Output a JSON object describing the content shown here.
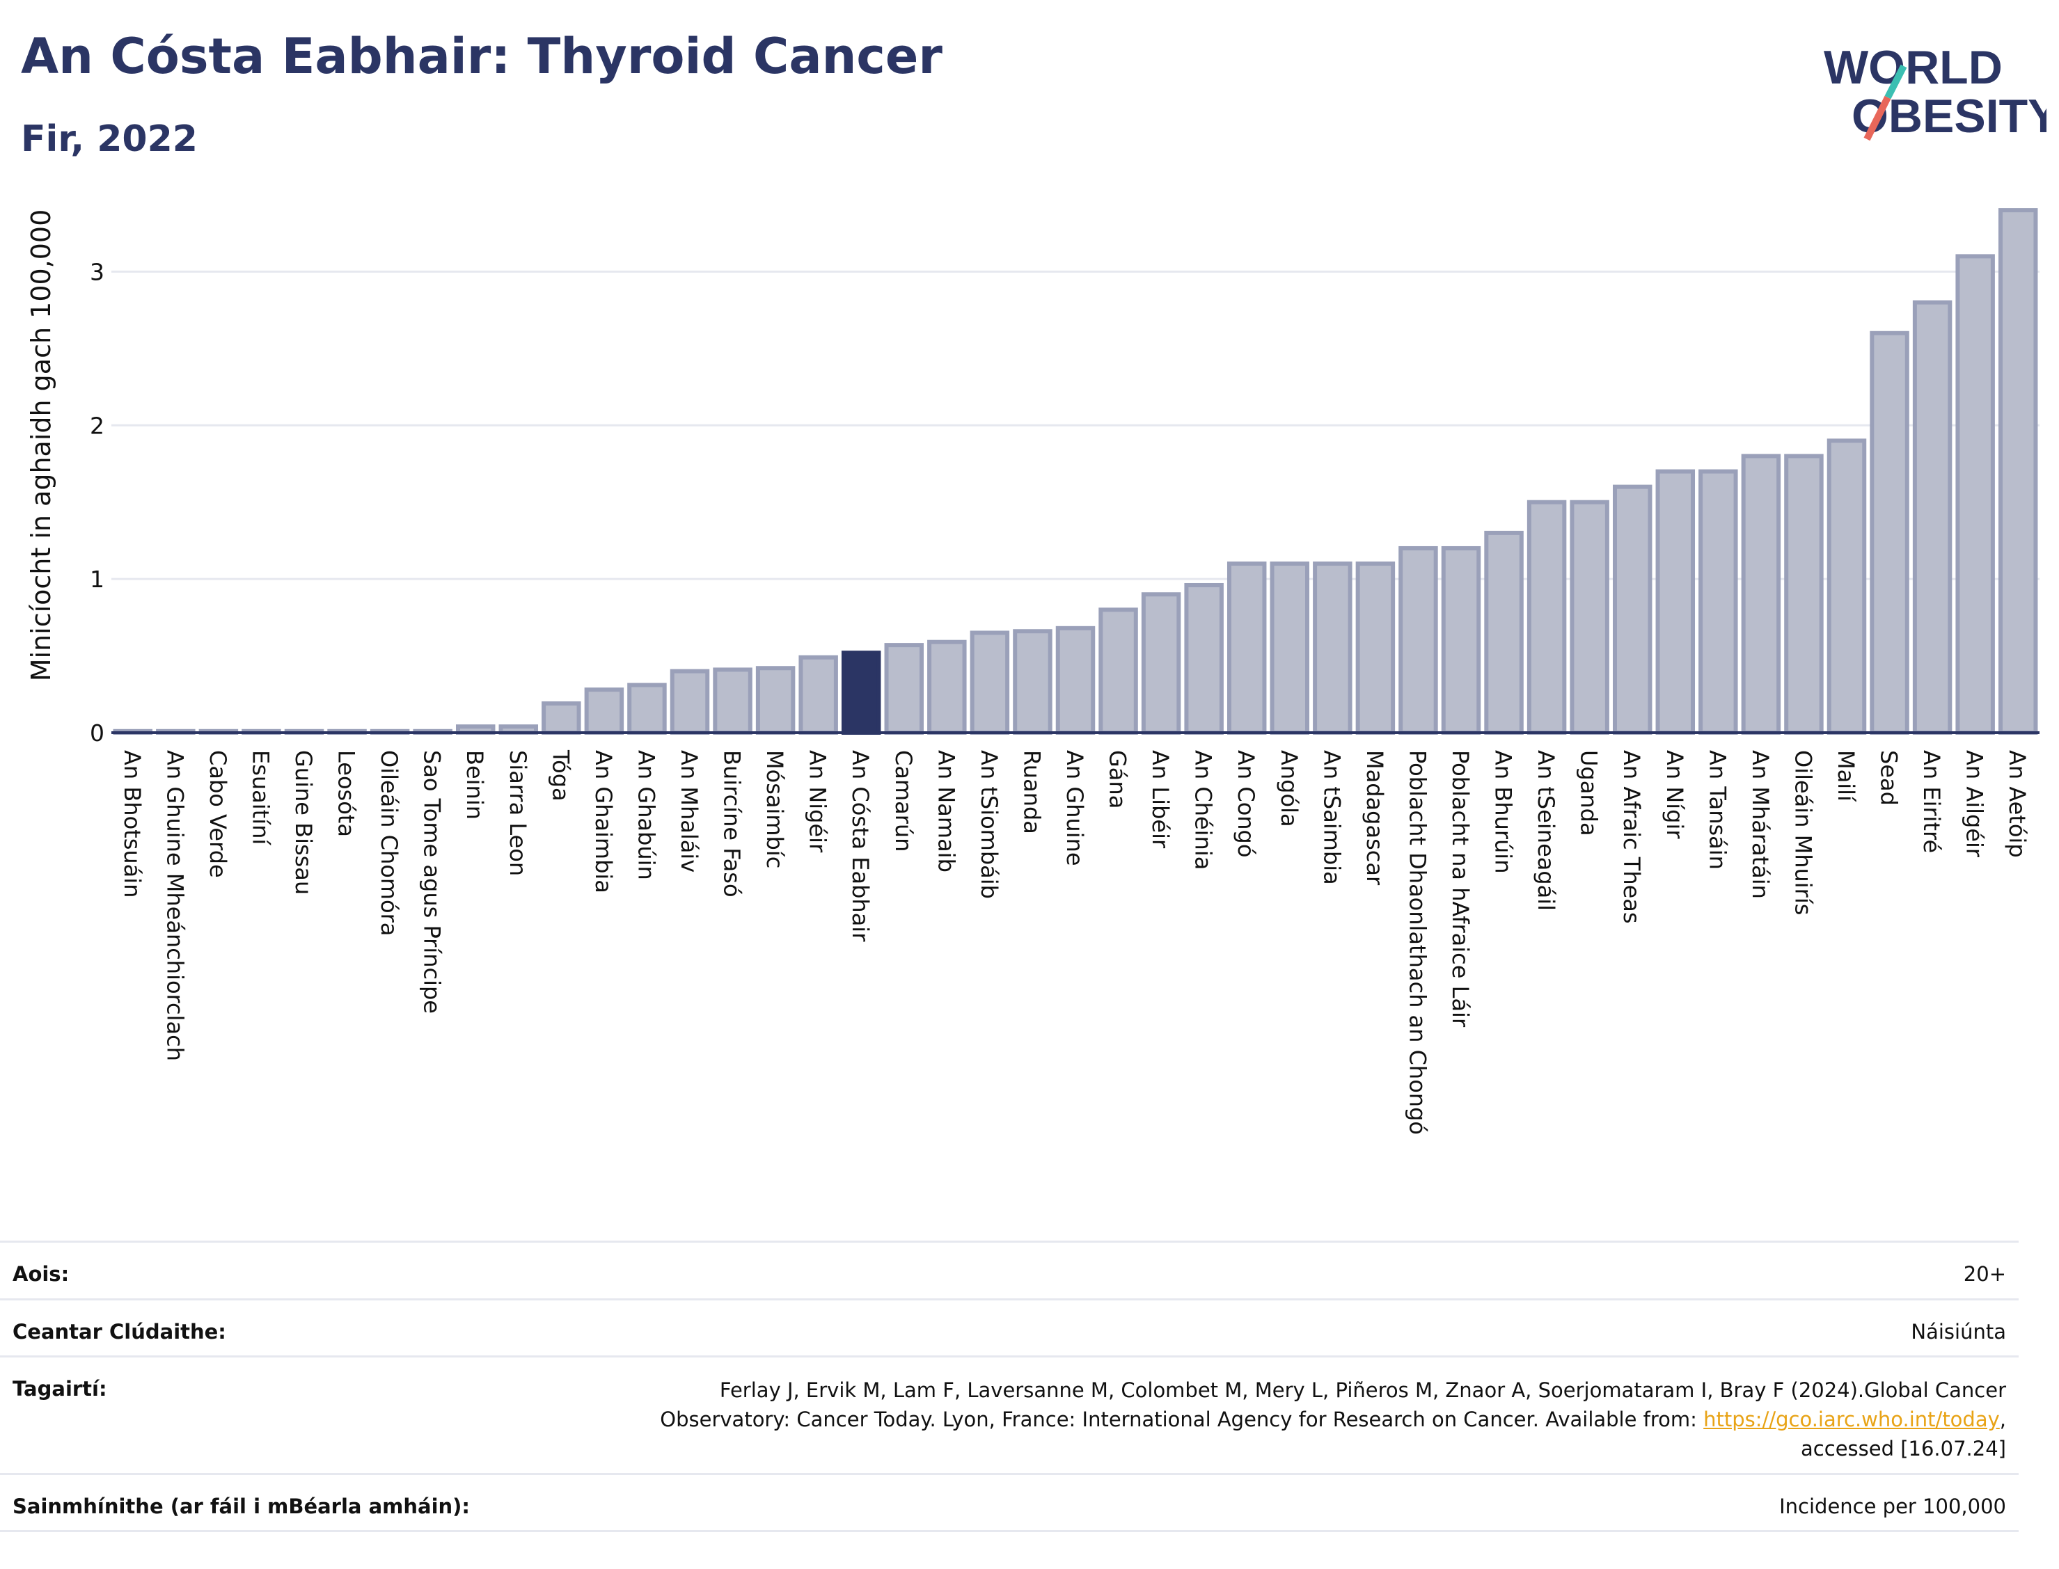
{
  "header": {
    "title": "An Cósta Eabhair: Thyroid Cancer",
    "subtitle": "Fir, 2022"
  },
  "logo": {
    "line1": "WORLD",
    "line2": "OBESITY",
    "accent": "#e8675a",
    "accent2": "#3bbfb2",
    "color": "#2b3564"
  },
  "colors": {
    "bar": "#b9bdcc",
    "bar_stroke": "#9aa0b9",
    "highlight": "#2b3564",
    "grid": "#e6e8ef",
    "axis": "#2b3564"
  },
  "chart_data": {
    "type": "bar",
    "ylabel": "Minicíocht in aghaidh gach 100,000",
    "ylim": [
      0,
      3.5
    ],
    "yticks": [
      0,
      1,
      2,
      3
    ],
    "highlight": "An Cósta Eabhair",
    "categories": [
      "An Bhotsuáin",
      "An Ghuine Mheánchiorclach",
      "Cabo Verde",
      "Esuaitíní",
      "Guine Bissau",
      "Leosóta",
      "Oileáin Chomóra",
      "Sao Tome agus Príncipe",
      "Beinin",
      "Siarra Leon",
      "Tóga",
      "An Ghaimbia",
      "An Ghabúin",
      "An Mhaláiv",
      "Buircíne Fasó",
      "Mósaimbíc",
      "An Nigéir",
      "An Cósta Eabhair",
      "Camarún",
      "An Namaib",
      "An tSiombáib",
      "Ruanda",
      "An Ghuine",
      "Gána",
      "An Libéir",
      "An Chéinia",
      "An Congó",
      "Angóla",
      "An tSaimbia",
      "Madagascar",
      "Poblacht Dhaonlathach an Chongó",
      "Poblacht na hAfraice Láir",
      "An Bhurúin",
      "An tSeineagáil",
      "Uganda",
      "An Afraic Theas",
      "An Nígir",
      "An Tansáin",
      "An Mháratáin",
      "Oileáin Mhuirís",
      "Mailí",
      "Sead",
      "An Eiritré",
      "An Ailgéir",
      "An Aetóip"
    ],
    "values": [
      0.01,
      0.01,
      0.01,
      0.01,
      0.01,
      0.01,
      0.01,
      0.01,
      0.04,
      0.04,
      0.19,
      0.28,
      0.31,
      0.4,
      0.41,
      0.42,
      0.49,
      0.52,
      0.57,
      0.59,
      0.65,
      0.66,
      0.68,
      0.8,
      0.9,
      0.96,
      1.1,
      1.1,
      1.1,
      1.1,
      1.2,
      1.2,
      1.3,
      1.5,
      1.5,
      1.6,
      1.7,
      1.7,
      1.8,
      1.8,
      1.9,
      2.6,
      2.8,
      3.1,
      3.4
    ]
  },
  "info": {
    "age_label": "Aois:",
    "age_value": "20+",
    "area_label": "Ceantar Clúdaithe:",
    "area_value": "Náisiúnta",
    "ref_label": "Tagairtí:",
    "ref_line1": "Ferlay J, Ervik M, Lam F, Laversanne M, Colombet M, Mery L, Piñeros M, Znaor A, Soerjomataram I, Bray F (2024).Global Cancer",
    "ref_line2_pre": "Observatory: Cancer Today. Lyon, France: International Agency for Research on Cancer. Available from: ",
    "ref_link": "https://gco.iarc.who.int/today",
    "ref_line2_post": ",",
    "ref_line3": "accessed [16.07.24]",
    "def_label": "Sainmhínithe (ar fáil i mBéarla amháin):",
    "def_value": "Incidence per 100,000"
  }
}
